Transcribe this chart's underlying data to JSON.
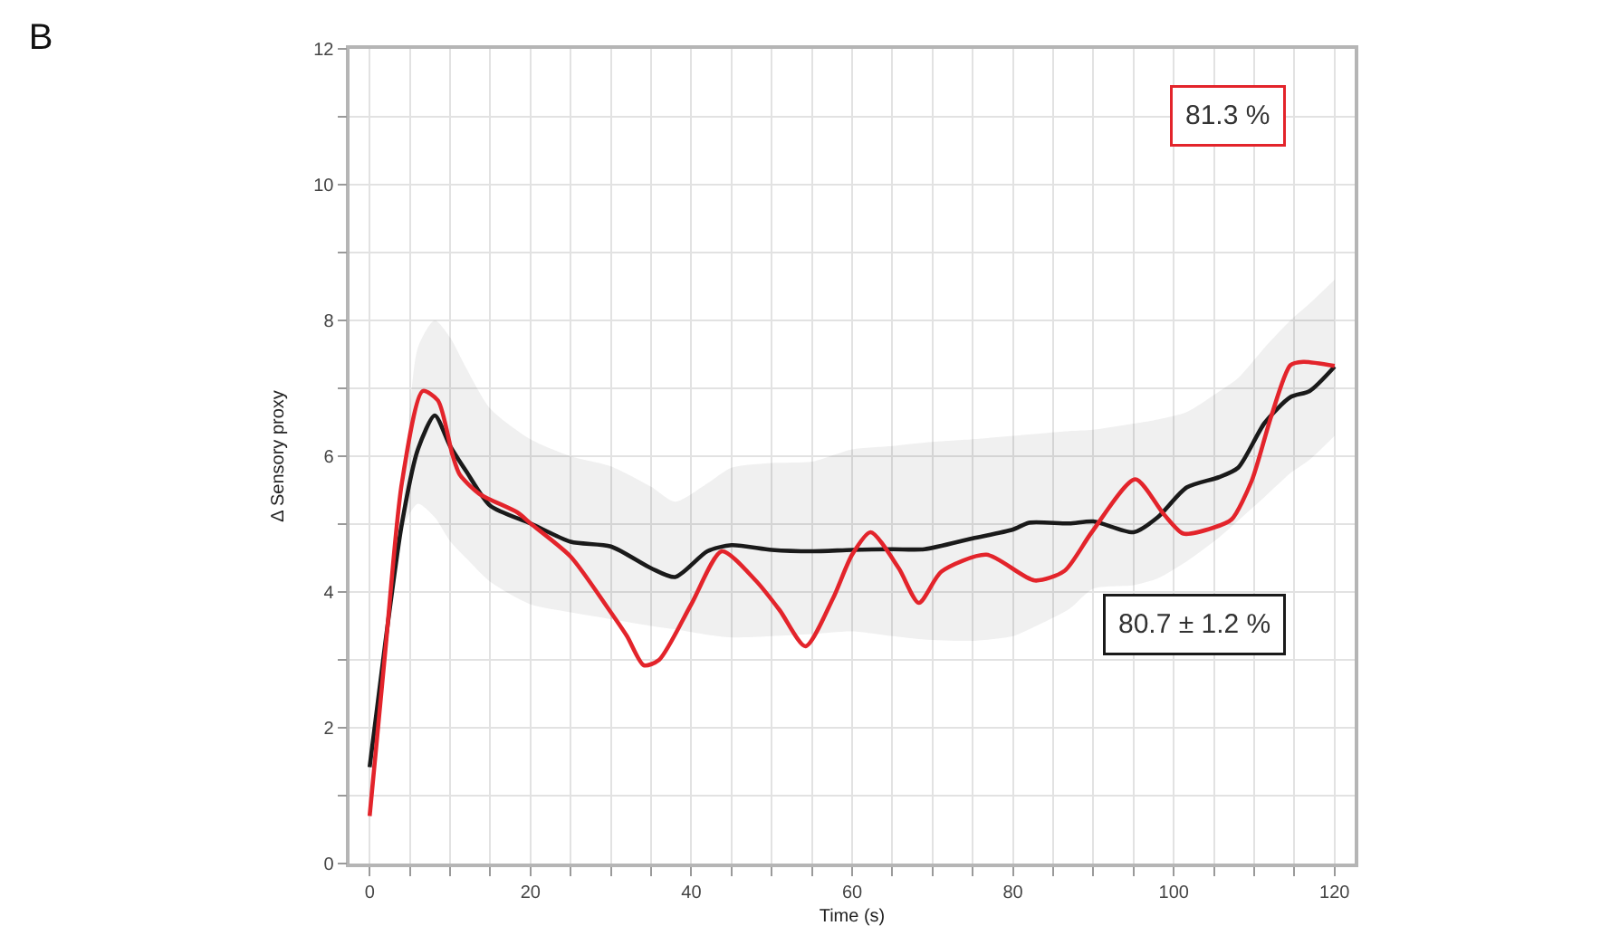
{
  "chart_data": {
    "type": "line",
    "title": "B",
    "xlabel": "Time (s)",
    "ylabel": "Δ Sensory proxy",
    "annotations": [
      "81.3 %",
      "80.7 ± 1.2 %"
    ],
    "series": [
      {
        "color": "#e3242b",
        "x": [
          0,
          2,
          4,
          6.6,
          8.5,
          10.3,
          11.2,
          13.6,
          18.4,
          20,
          25,
          29.7,
          32,
          34.1,
          36,
          40,
          43.8,
          48,
          51,
          54.2,
          57.6,
          60,
          62.3,
          65.8,
          68.3,
          71.1,
          76.7,
          82.7,
          86.4,
          89.8,
          95.2,
          98.8,
          101.2,
          105,
          107.2,
          109.7,
          112.1,
          114.5,
          116.1,
          120
        ],
        "values": [
          0.7,
          3.2,
          5.6,
          6.96,
          6.82,
          6.02,
          5.73,
          5.45,
          5.17,
          5.01,
          4.52,
          3.75,
          3.35,
          2.92,
          3.0,
          3.82,
          4.6,
          4.17,
          3.73,
          3.2,
          3.9,
          4.55,
          4.88,
          4.35,
          3.84,
          4.3,
          4.55,
          4.17,
          4.31,
          4.88,
          5.66,
          5.14,
          4.86,
          4.95,
          5.07,
          5.64,
          6.58,
          7.34,
          7.39,
          7.33
        ]
      },
      {
        "color": "#1a1a1a",
        "x": [
          0,
          2,
          4,
          6,
          8.1,
          10,
          12,
          15,
          20,
          25,
          30,
          35,
          38,
          42,
          45,
          50,
          55,
          60,
          65,
          69,
          75,
          80,
          82,
          87,
          90,
          95,
          98,
          101.6,
          105.6,
          108,
          111.3,
          114.5,
          116.9,
          120
        ],
        "values": [
          1.42,
          3.3,
          5.0,
          6.1,
          6.6,
          6.15,
          5.78,
          5.27,
          5.01,
          4.74,
          4.67,
          4.35,
          4.22,
          4.6,
          4.69,
          4.62,
          4.6,
          4.62,
          4.63,
          4.63,
          4.79,
          4.92,
          5.02,
          5.01,
          5.04,
          4.88,
          5.1,
          5.54,
          5.69,
          5.83,
          6.49,
          6.87,
          6.96,
          7.32
        ],
        "lower": [
          1.35,
          3.2,
          4.9,
          5.3,
          5.1,
          4.75,
          4.5,
          4.15,
          3.82,
          3.7,
          3.6,
          3.5,
          3.45,
          3.37,
          3.33,
          3.35,
          3.38,
          3.42,
          3.35,
          3.3,
          3.28,
          3.35,
          3.45,
          3.75,
          4.05,
          4.1,
          4.2,
          4.45,
          4.8,
          5.05,
          5.4,
          5.75,
          5.95,
          6.3
        ],
        "upper": [
          1.5,
          3.4,
          5.1,
          7.6,
          8.0,
          7.75,
          7.3,
          6.7,
          6.25,
          6.0,
          5.85,
          5.55,
          5.33,
          5.6,
          5.83,
          5.9,
          5.92,
          6.1,
          6.15,
          6.2,
          6.25,
          6.3,
          6.32,
          6.37,
          6.39,
          6.48,
          6.54,
          6.65,
          6.95,
          7.15,
          7.6,
          8.0,
          8.25,
          8.6
        ]
      }
    ],
    "xlim": [
      -2.5,
      122.5
    ],
    "xticks": [
      0,
      {
        "value": 5,
        "label": null
      },
      {
        "value": 10,
        "label": null
      },
      {
        "value": 15,
        "label": null
      },
      20,
      {
        "value": 25,
        "label": null
      },
      {
        "value": 30,
        "label": null
      },
      {
        "value": 35,
        "label": null
      },
      40,
      {
        "value": 45,
        "label": null
      },
      {
        "value": 50,
        "label": null
      },
      {
        "value": 55,
        "label": null
      },
      60,
      {
        "value": 65,
        "label": null
      },
      {
        "value": 70,
        "label": null
      },
      {
        "value": 75,
        "label": null
      },
      80,
      {
        "value": 85,
        "label": null
      },
      {
        "value": 90,
        "label": null
      },
      {
        "value": 95,
        "label": null
      },
      100,
      {
        "value": 105,
        "label": null
      },
      {
        "value": 110,
        "label": null
      },
      {
        "value": 115,
        "label": null
      },
      120
    ],
    "ylim": [
      0,
      12
    ],
    "yticks": [
      0,
      {
        "value": 1,
        "label": null
      },
      2,
      {
        "value": 3,
        "label": null
      },
      4,
      {
        "value": 5,
        "label": null
      },
      6,
      {
        "value": 7,
        "label": null
      },
      8,
      {
        "value": 9,
        "label": null
      },
      10,
      {
        "value": 11,
        "label": null
      },
      12
    ],
    "grid": true
  }
}
